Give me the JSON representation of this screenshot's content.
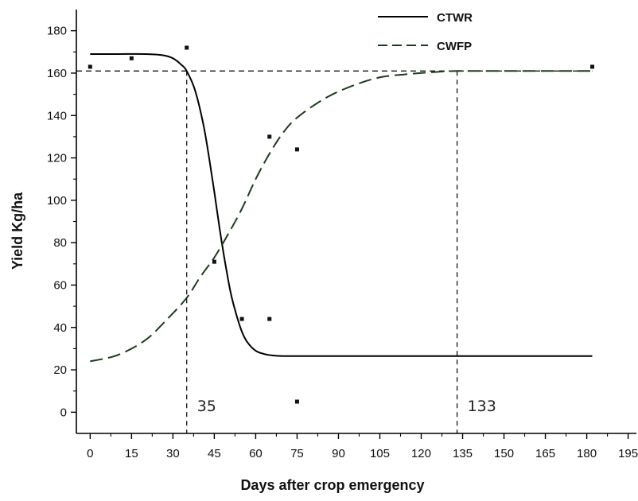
{
  "chart_data": {
    "type": "line",
    "title": "",
    "xlabel": "Days after crop emergency",
    "ylabel": "Yield Kg/ha",
    "xlim": [
      -5,
      198
    ],
    "ylim": [
      -10,
      190
    ],
    "xticks": [
      0,
      15,
      30,
      45,
      60,
      75,
      90,
      105,
      120,
      135,
      150,
      165,
      180,
      195
    ],
    "yticks": [
      0,
      20,
      40,
      60,
      80,
      100,
      120,
      140,
      160,
      180
    ],
    "grid": false,
    "legend_position": "top-right",
    "series": [
      {
        "name": "CTWR",
        "style": "solid",
        "color": "#000000",
        "x": [
          0,
          10,
          20,
          26,
          30,
          33,
          35,
          38,
          41,
          43,
          45,
          47,
          49,
          51,
          53,
          55,
          57,
          60,
          63,
          66,
          70,
          80,
          100,
          130,
          160,
          182
        ],
        "y": [
          169,
          169,
          169,
          168.5,
          167,
          164,
          161,
          152,
          136,
          121,
          104,
          86,
          70,
          56,
          46,
          38,
          33,
          29,
          27.5,
          26.8,
          26.5,
          26.5,
          26.5,
          26.5,
          26.5,
          26.5
        ]
      },
      {
        "name": "CWFP",
        "style": "dashed",
        "color": "#1e3a1e",
        "x": [
          0,
          10,
          20,
          28,
          35,
          40,
          45,
          50,
          55,
          60,
          65,
          70,
          75,
          85,
          95,
          105,
          115,
          125,
          133,
          150,
          182
        ],
        "y": [
          24,
          27,
          34,
          44,
          54,
          64,
          73,
          84,
          96,
          110,
          122,
          132,
          139,
          148,
          154,
          158,
          159.5,
          160.5,
          161,
          161,
          161
        ]
      }
    ],
    "points": {
      "x": [
        0,
        15,
        35,
        45,
        55,
        65,
        65,
        75,
        75,
        182
      ],
      "y": [
        163,
        167,
        172,
        71,
        44,
        130,
        44,
        124,
        5,
        163
      ]
    },
    "reference_lines": {
      "horizontal_y": 161,
      "vertical_x": [
        35,
        133
      ]
    },
    "annotations": [
      {
        "text": "35",
        "x": 35
      },
      {
        "text": "133",
        "x": 133
      }
    ],
    "colors": {
      "axis": "#000000",
      "ctwr": "#000000",
      "cwfp": "#1e3a1e"
    }
  }
}
